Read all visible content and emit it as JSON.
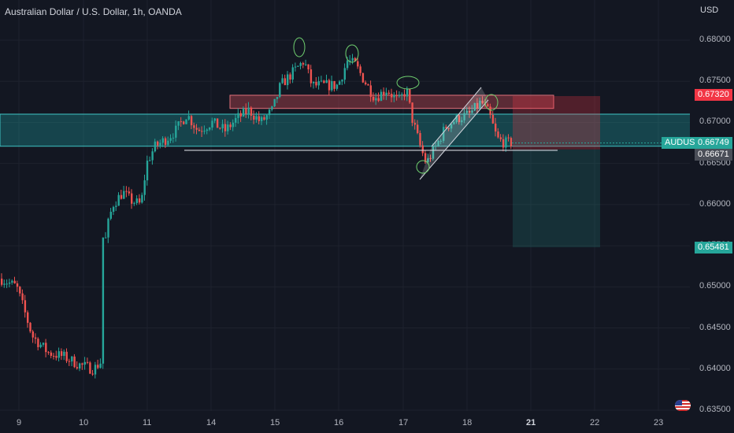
{
  "title": "Australian Dollar / U.S. Dollar, 1h, OANDA",
  "currency": "USD",
  "symbol": "AUDUSD",
  "y_ticks": [
    "0.68000",
    "0.67500",
    "0.67000",
    "0.66500",
    "0.66000",
    "0.65500",
    "0.65000",
    "0.64500",
    "0.64000",
    "0.63500"
  ],
  "x_ticks": [
    "9",
    "10",
    "11",
    "14",
    "15",
    "16",
    "17",
    "18",
    "21",
    "22",
    "23"
  ],
  "price_labels": {
    "stop": "0.67320",
    "current": "0.66749",
    "entry": "0.66671",
    "target": "0.65481"
  },
  "colors": {
    "background": "#131722",
    "up": "#26a69a",
    "down": "#ef5350",
    "zone": "#1fa5a5",
    "supply": "#c84a55",
    "target_bg": "#26a69a",
    "stop_bg": "#f23645"
  },
  "chart_data": {
    "type": "candlestick",
    "instrument": "AUD/USD",
    "timeframe": "1h",
    "ylim": [
      0.635,
      0.683
    ],
    "anchors": [
      [
        0,
        0.651
      ],
      [
        20,
        0.65
      ],
      [
        40,
        0.644
      ],
      [
        60,
        0.642
      ],
      [
        80,
        0.6415
      ],
      [
        100,
        0.6405
      ],
      [
        118,
        0.64
      ],
      [
        128,
        0.641
      ],
      [
        132,
        0.656
      ],
      [
        142,
        0.66
      ],
      [
        155,
        0.6615
      ],
      [
        165,
        0.6605
      ],
      [
        178,
        0.66
      ],
      [
        185,
        0.665
      ],
      [
        195,
        0.667
      ],
      [
        210,
        0.668
      ],
      [
        222,
        0.669
      ],
      [
        236,
        0.671
      ],
      [
        250,
        0.669
      ],
      [
        268,
        0.67
      ],
      [
        285,
        0.669
      ],
      [
        300,
        0.6705
      ],
      [
        315,
        0.6715
      ],
      [
        330,
        0.67
      ],
      [
        345,
        0.6715
      ],
      [
        355,
        0.6745
      ],
      [
        370,
        0.676
      ],
      [
        385,
        0.6775
      ],
      [
        395,
        0.6745
      ],
      [
        410,
        0.6745
      ],
      [
        428,
        0.6745
      ],
      [
        440,
        0.6775
      ],
      [
        450,
        0.677
      ],
      [
        465,
        0.6745
      ],
      [
        475,
        0.673
      ],
      [
        490,
        0.674
      ],
      [
        505,
        0.6725
      ],
      [
        515,
        0.674
      ],
      [
        522,
        0.6705
      ],
      [
        532,
        0.6672
      ],
      [
        540,
        0.665
      ],
      [
        552,
        0.667
      ],
      [
        565,
        0.6695
      ],
      [
        580,
        0.6705
      ],
      [
        595,
        0.671
      ],
      [
        610,
        0.6725
      ],
      [
        620,
        0.671
      ],
      [
        630,
        0.668
      ],
      [
        640,
        0.6675
      ],
      [
        650,
        0.6675
      ]
    ],
    "annotations": {
      "demand_zone": [
        0.6671,
        0.671
      ],
      "supply_zone": [
        0.6717,
        0.6733
      ],
      "support_line": 0.6666,
      "trade": {
        "direction": "short",
        "entry": 0.66671,
        "stop": 0.6732,
        "target": 0.65481
      }
    }
  }
}
